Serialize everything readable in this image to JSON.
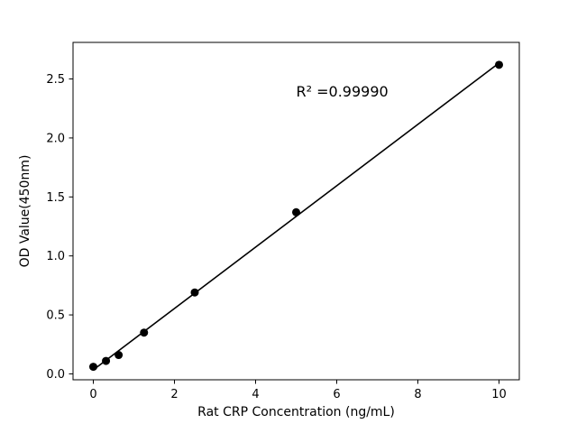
{
  "chart_data": {
    "type": "scatter",
    "title": "",
    "xlabel": "Rat CRP Concentration (ng/mL)",
    "ylabel": "OD Value(450nm)",
    "x": [
      0,
      0.3125,
      0.625,
      1.25,
      2.5,
      5,
      10
    ],
    "y": [
      0.06,
      0.11,
      0.16,
      0.35,
      0.69,
      1.37,
      2.62
    ],
    "fit_line": true,
    "xlim": [
      -0.5,
      10.5
    ],
    "ylim": [
      -0.05,
      2.81
    ],
    "xticks": [
      0,
      2,
      4,
      6,
      8,
      10
    ],
    "xtick_labels": [
      "0",
      "2",
      "4",
      "6",
      "8",
      "10"
    ],
    "yticks": [
      0.0,
      0.5,
      1.0,
      1.5,
      2.0,
      2.5
    ],
    "ytick_labels": [
      "0.0",
      "0.5",
      "1.0",
      "1.5",
      "2.0",
      "2.5"
    ],
    "annotation": {
      "text": "R² =0.99990",
      "x": 5.0,
      "y": 2.35
    },
    "grid": false,
    "legend": "none",
    "line_color": "#000000",
    "marker_color": "#000000",
    "axis_color": "#000000",
    "background": "#ffffff"
  }
}
